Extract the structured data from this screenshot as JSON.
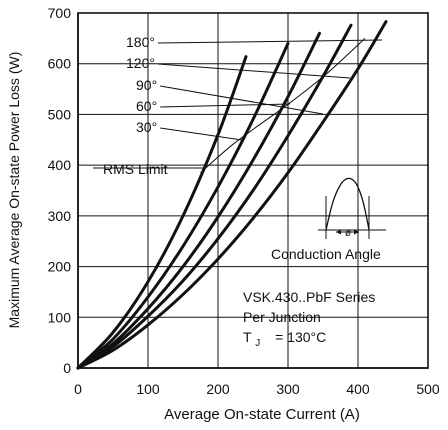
{
  "chart_data": {
    "type": "line",
    "xlabel": "Average  On-state  Current  (A)",
    "ylabel": "Maximum  Average  On-state  Power  Loss  (W)",
    "xlim": [
      0,
      500
    ],
    "ylim": [
      0,
      700
    ],
    "x_ticks": [
      0,
      100,
      200,
      300,
      400,
      500
    ],
    "y_ticks": [
      0,
      100,
      200,
      300,
      400,
      500,
      600,
      700
    ],
    "grid": true,
    "series": [
      {
        "name": "180°",
        "values": [
          [
            0,
            0
          ],
          [
            50,
            35
          ],
          [
            100,
            85
          ],
          [
            150,
            145
          ],
          [
            200,
            215
          ],
          [
            250,
            295
          ],
          [
            300,
            385
          ],
          [
            350,
            485
          ],
          [
            400,
            590
          ],
          [
            440,
            683
          ]
        ]
      },
      {
        "name": "120°",
        "values": [
          [
            0,
            0
          ],
          [
            50,
            42
          ],
          [
            100,
            102
          ],
          [
            150,
            172
          ],
          [
            200,
            255
          ],
          [
            250,
            350
          ],
          [
            300,
            458
          ],
          [
            350,
            575
          ],
          [
            390,
            676
          ]
        ]
      },
      {
        "name": "90°",
        "values": [
          [
            0,
            0
          ],
          [
            50,
            48
          ],
          [
            100,
            117
          ],
          [
            150,
            200
          ],
          [
            200,
            298
          ],
          [
            250,
            410
          ],
          [
            300,
            535
          ],
          [
            345,
            660
          ]
        ]
      },
      {
        "name": "60°",
        "values": [
          [
            0,
            0
          ],
          [
            50,
            57
          ],
          [
            100,
            140
          ],
          [
            150,
            240
          ],
          [
            200,
            357
          ],
          [
            250,
            490
          ],
          [
            300,
            640
          ]
        ]
      },
      {
        "name": "30°",
        "values": [
          [
            0,
            0
          ],
          [
            50,
            70
          ],
          [
            100,
            170
          ],
          [
            150,
            300
          ],
          [
            200,
            460
          ],
          [
            240,
            614
          ]
        ]
      }
    ],
    "rms_limit": {
      "label": "RMS  Limit",
      "values": [
        [
          175,
          385
        ],
        [
          225,
          445
        ],
        [
          300,
          520
        ],
        [
          355,
          580
        ],
        [
          410,
          650
        ]
      ]
    },
    "annotations": {
      "conduction_angle": "Conduction  Angle",
      "series_title": "VSK.430..PbF Series",
      "per_junction": "Per  Junction",
      "tj_label": "T",
      "tj_subscript": "J",
      "tj_value": "=  130°C",
      "phi_symbol": "ø"
    }
  },
  "colors": {
    "line": "#111111",
    "grid": "#111111",
    "axis": "#111111",
    "background": "#ffffff"
  }
}
